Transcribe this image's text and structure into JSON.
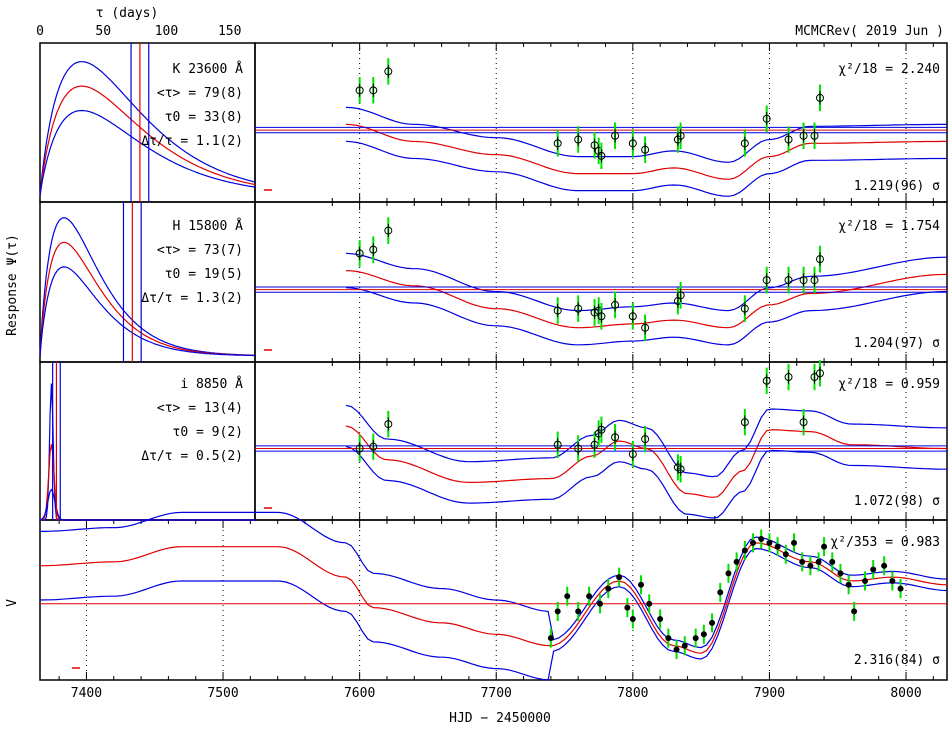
{
  "header": {
    "tau_axis_label": "τ (days)",
    "run_label": "MCMCRev( 2019 Jun )"
  },
  "axes": {
    "tau_ticks": [
      "0",
      "50",
      "100",
      "150"
    ],
    "x_ticks": [
      "7400",
      "7500",
      "7600",
      "7700",
      "7800",
      "7900",
      "8000"
    ],
    "x_label": "HJD − 2450000",
    "response_label": "Response Ψ(τ)"
  },
  "colors": {
    "model": "#e00000",
    "envelope": "#0000e0",
    "error_bar": "#00e000",
    "data_point": "#000000",
    "axis": "#000000"
  },
  "chart_data": [
    {
      "type": "line",
      "band": "K 23600 Å",
      "mean_lag": "<τ> = 79(8)",
      "tau0": "τ0 = 33(8)",
      "width_ratio": "Δτ/τ = 1.1(2)",
      "chi2": "χ²/18 = 2.240",
      "scale": "1.219(96) σ",
      "x": [
        7600,
        7610,
        7621,
        7745,
        7760,
        7772,
        7775,
        7777,
        7787,
        7800,
        7809,
        7833,
        7835,
        7882,
        7898,
        7914,
        7925,
        7933,
        7937
      ],
      "y": [
        0.85,
        0.85,
        1.35,
        -0.55,
        -0.45,
        -0.6,
        -0.75,
        -0.88,
        -0.35,
        -0.55,
        -0.72,
        -0.45,
        -0.35,
        -0.55,
        0.1,
        -0.45,
        -0.35,
        -0.35,
        0.65
      ]
    },
    {
      "type": "line",
      "band": "H 15800 Å",
      "mean_lag": "<τ> = 73(7)",
      "tau0": "τ0 = 19(5)",
      "width_ratio": "Δτ/τ = 1.3(2)",
      "chi2": "χ²/18 = 1.754",
      "scale": "1.204(97) σ",
      "x": [
        7600,
        7610,
        7621,
        7745,
        7760,
        7772,
        7775,
        7777,
        7787,
        7800,
        7809,
        7833,
        7835,
        7882,
        7898,
        7914,
        7925,
        7933,
        7937
      ],
      "y": [
        0.75,
        0.85,
        1.35,
        -0.75,
        -0.7,
        -0.8,
        -0.75,
        -0.9,
        -0.6,
        -0.9,
        -1.2,
        -0.5,
        -0.35,
        -0.7,
        0.05,
        0.05,
        0.05,
        0.05,
        0.6
      ]
    },
    {
      "type": "line",
      "band": "i 8850 Å",
      "mean_lag": "<τ> = 13(4)",
      "tau0": "τ0 = 9(2)",
      "width_ratio": "Δτ/τ = 0.5(2)",
      "chi2": "χ²/18 = 0.959",
      "scale": "1.072(98) σ",
      "x": [
        7600,
        7610,
        7621,
        7745,
        7760,
        7772,
        7775,
        7777,
        7787,
        7800,
        7809,
        7833,
        7835,
        7882,
        7898,
        7914,
        7925,
        7933,
        7937
      ],
      "y": [
        -0.2,
        -0.15,
        0.45,
        -0.1,
        -0.2,
        -0.1,
        0.2,
        0.3,
        0.1,
        -0.35,
        0.05,
        -0.7,
        -0.75,
        0.5,
        1.6,
        1.7,
        0.5,
        1.7,
        1.8
      ]
    },
    {
      "type": "line",
      "band": "V",
      "chi2": "χ²/353 = 0.983",
      "scale": "2.316(84) σ",
      "x": [
        7740,
        7745,
        7752,
        7760,
        7768,
        7776,
        7782,
        7790,
        7796,
        7800,
        7806,
        7812,
        7820,
        7826,
        7832,
        7838,
        7846,
        7852,
        7858,
        7864,
        7870,
        7876,
        7882,
        7888,
        7894,
        7900,
        7906,
        7912,
        7918,
        7924,
        7930,
        7936,
        7940,
        7946,
        7952,
        7958,
        7962,
        7970,
        7976,
        7984,
        7990,
        7996
      ],
      "y": [
        -1.0,
        -0.3,
        0.1,
        -0.3,
        0.1,
        -0.1,
        0.3,
        0.6,
        -0.2,
        -0.5,
        0.4,
        -0.1,
        -0.5,
        -1.0,
        -1.3,
        -1.2,
        -1.0,
        -0.9,
        -0.6,
        0.2,
        0.7,
        1.0,
        1.3,
        1.5,
        1.6,
        1.5,
        1.4,
        1.2,
        1.5,
        1.0,
        0.9,
        1.0,
        1.4,
        1.0,
        0.7,
        0.4,
        -0.3,
        0.5,
        0.8,
        0.9,
        0.5,
        0.3
      ]
    }
  ]
}
